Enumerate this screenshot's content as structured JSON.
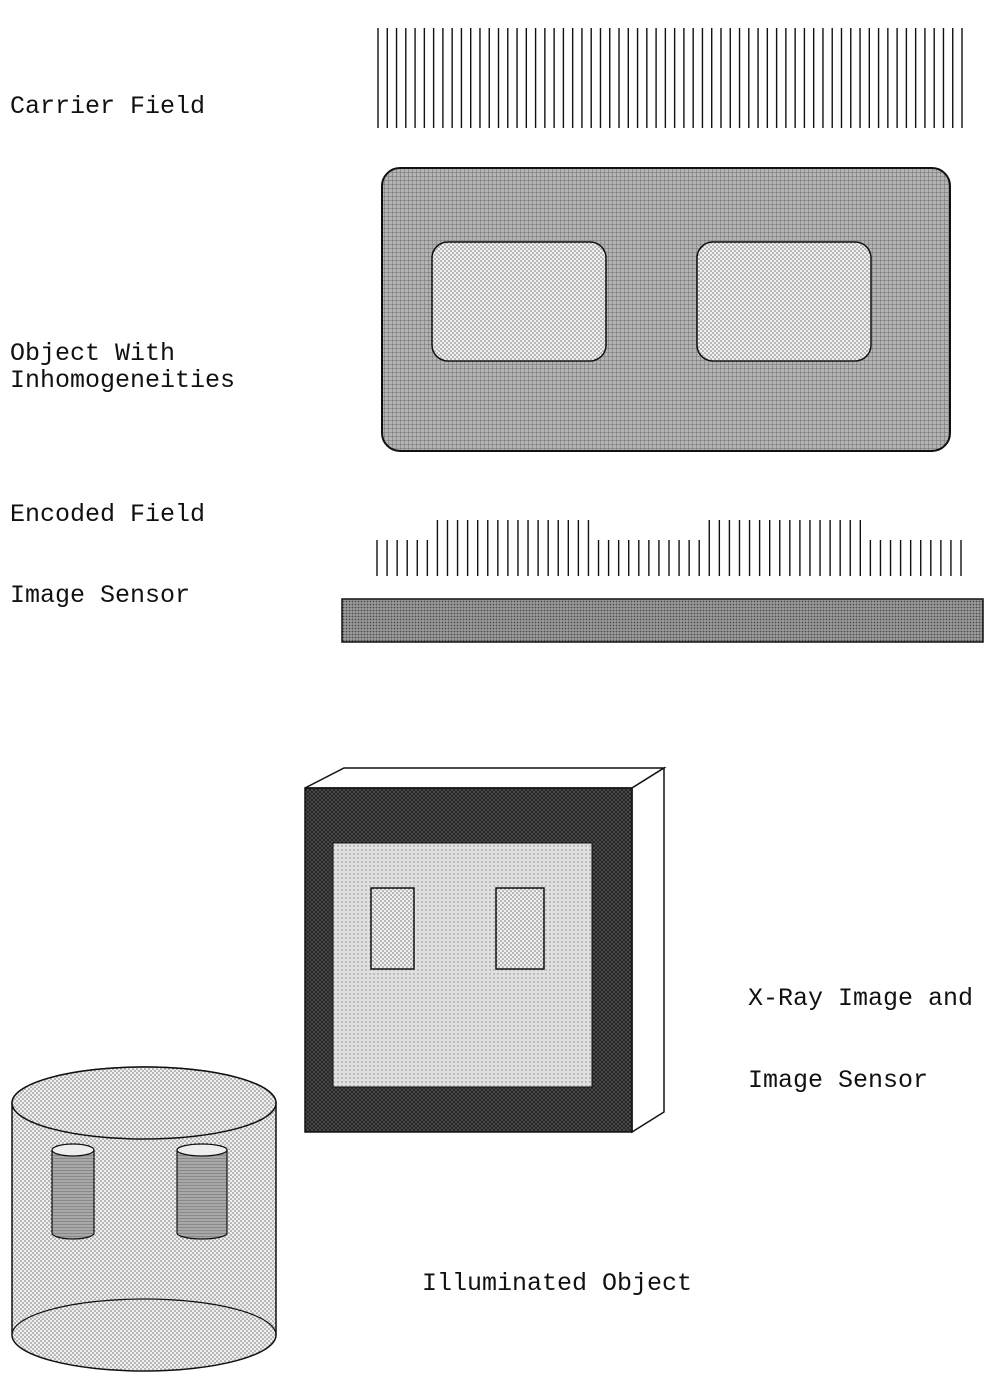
{
  "labels": {
    "carrier_field": "Carrier Field",
    "object_line1": "Object With",
    "object_line2": "Inhomogeneities",
    "encoded_field": "Encoded Field",
    "image_sensor": "Image Sensor",
    "xray_line1": "X-Ray Image and",
    "xray_line2": "Image Sensor",
    "illuminated_object": "Illuminated Object"
  },
  "colors": {
    "line": "#111111",
    "object_fill": "#9a9a9a",
    "window_fill": "#d8d8d8",
    "sensor_fill": "#8c8c8c",
    "frame_dark": "#3a3a3a",
    "frame_inner": "#bdbdbd",
    "cylinder_fill": "#d2d2d2",
    "small_cylinder_fill": "#a8a8a8"
  },
  "carrier_field": {
    "line_count": 64
  },
  "encoded_field": {
    "segments": [
      {
        "count": 6,
        "level": "low"
      },
      {
        "count": 16,
        "level": "high"
      },
      {
        "count": 11,
        "level": "low"
      },
      {
        "count": 16,
        "level": "high"
      },
      {
        "count": 10,
        "level": "low"
      }
    ]
  }
}
